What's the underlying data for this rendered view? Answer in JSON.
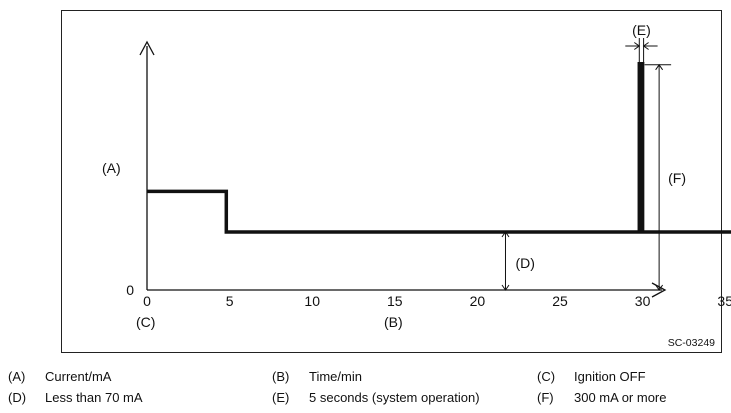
{
  "chart_data": {
    "type": "line",
    "title": "",
    "xlabel": "(B)",
    "ylabel": "(A)",
    "x_ticks": [
      "0",
      "5",
      "10",
      "15",
      "20",
      "25",
      "30",
      "35"
    ],
    "y_ticks": [
      "0"
    ],
    "xlim": [
      0,
      37
    ],
    "ylim": [
      0,
      390
    ],
    "series": [
      {
        "x": [
          0,
          4.8,
          4.8,
          29.8,
          29.8,
          30.0,
          30.0,
          37
        ],
        "y": [
          170,
          170,
          100,
          100,
          390,
          390,
          100,
          100
        ]
      }
    ],
    "annotations": {
      "origin_sub": "(C)",
      "d_label": "(D)",
      "e_label": "(E)",
      "f_label": "(F)",
      "d_x": 21.7,
      "f_x": 31.0
    },
    "figure_id": "SC-03249"
  },
  "legend": [
    {
      "key": "(A)",
      "text": "Current/mA"
    },
    {
      "key": "(B)",
      "text": "Time/min"
    },
    {
      "key": "(C)",
      "text": "Ignition OFF"
    },
    {
      "key": "(D)",
      "text": "Less than 70 mA"
    },
    {
      "key": "(E)",
      "text": "5 seconds (system operation)"
    },
    {
      "key": "(F)",
      "text": "300 mA or more"
    }
  ]
}
